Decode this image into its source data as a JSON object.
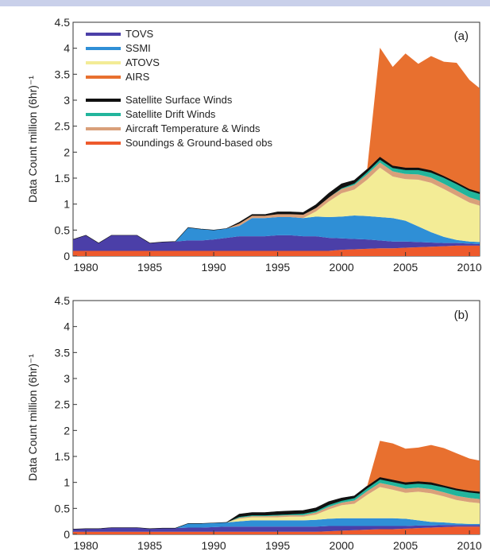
{
  "colors": {
    "background": "#c9d0ea",
    "panel": "#ffffff",
    "TOVS": "#4b3fa8",
    "SSMI": "#2f8fd6",
    "ATOVS": "#f3ec96",
    "AIRS": "#e8702f",
    "Satellite Surface Winds": "#111111",
    "Satellite Drift Winds": "#22b59c",
    "Aircraft Temperature & Winds": "#d9a07a",
    "Soundings & Ground-based obs": "#ee5a2c"
  },
  "chart_data": [
    {
      "type": "area",
      "panel_label": "(a)",
      "ylabel": "Data Count million (6hr)⁻¹",
      "xlabel": "",
      "xlim": [
        1979,
        2010.8
      ],
      "ylim": [
        0,
        4.5
      ],
      "xticks": [
        "1980",
        "1985",
        "1990",
        "1995",
        "2000",
        "2005",
        "2010"
      ],
      "yticks": [
        "0",
        "0.5",
        "1",
        "1.5",
        "2",
        "2.5",
        "3",
        "3.5",
        "4",
        "4.5"
      ],
      "grid": false,
      "legend_position": "top-left",
      "x": [
        1979,
        1980,
        1981,
        1982,
        1983,
        1984,
        1985,
        1986,
        1987,
        1988,
        1989,
        1990,
        1991,
        1992,
        1993,
        1994,
        1995,
        1996,
        1997,
        1998,
        1999,
        2000,
        2001,
        2002,
        2003,
        2004,
        2005,
        2006,
        2007,
        2008,
        2009,
        2010,
        2010.8
      ],
      "series": [
        {
          "name": "Soundings & Ground-based obs",
          "values": [
            0.1,
            0.1,
            0.1,
            0.1,
            0.1,
            0.1,
            0.1,
            0.1,
            0.1,
            0.1,
            0.1,
            0.1,
            0.1,
            0.1,
            0.1,
            0.1,
            0.1,
            0.1,
            0.1,
            0.1,
            0.1,
            0.12,
            0.13,
            0.14,
            0.15,
            0.15,
            0.16,
            0.17,
            0.18,
            0.19,
            0.2,
            0.2,
            0.2
          ]
        },
        {
          "name": "TOVS",
          "values": [
            0.22,
            0.3,
            0.15,
            0.3,
            0.3,
            0.3,
            0.15,
            0.17,
            0.18,
            0.2,
            0.2,
            0.22,
            0.25,
            0.28,
            0.28,
            0.28,
            0.3,
            0.3,
            0.28,
            0.28,
            0.25,
            0.22,
            0.2,
            0.18,
            0.15,
            0.13,
            0.12,
            0.1,
            0.08,
            0.06,
            0.05,
            0.04,
            0.03
          ]
        },
        {
          "name": "SSMI",
          "values": [
            0,
            0,
            0,
            0,
            0,
            0,
            0,
            0,
            0,
            0.25,
            0.22,
            0.18,
            0.18,
            0.2,
            0.35,
            0.35,
            0.35,
            0.35,
            0.35,
            0.38,
            0.4,
            0.42,
            0.45,
            0.45,
            0.45,
            0.45,
            0.4,
            0.3,
            0.2,
            0.12,
            0.06,
            0.04,
            0.04
          ]
        },
        {
          "name": "ATOVS",
          "values": [
            0,
            0,
            0,
            0,
            0,
            0,
            0,
            0,
            0,
            0,
            0,
            0,
            0,
            0,
            0,
            0,
            0,
            0,
            0,
            0.1,
            0.3,
            0.45,
            0.5,
            0.7,
            0.95,
            0.8,
            0.8,
            0.9,
            0.95,
            0.92,
            0.85,
            0.75,
            0.7
          ]
        },
        {
          "name": "Aircraft Temperature & Winds",
          "values": [
            0,
            0,
            0,
            0,
            0,
            0,
            0,
            0,
            0,
            0,
            0,
            0,
            0,
            0.05,
            0.05,
            0.05,
            0.06,
            0.06,
            0.07,
            0.07,
            0.08,
            0.08,
            0.09,
            0.1,
            0.1,
            0.1,
            0.1,
            0.1,
            0.1,
            0.1,
            0.1,
            0.1,
            0.1
          ]
        },
        {
          "name": "Satellite Drift Winds",
          "values": [
            0,
            0,
            0,
            0,
            0,
            0,
            0,
            0,
            0,
            0,
            0,
            0,
            0,
            0,
            0,
            0,
            0,
            0,
            0,
            0,
            0,
            0.02,
            0.03,
            0.05,
            0.06,
            0.07,
            0.08,
            0.09,
            0.1,
            0.12,
            0.13,
            0.13,
            0.13
          ]
        },
        {
          "name": "Satellite Surface Winds",
          "values": [
            0,
            0,
            0,
            0,
            0,
            0,
            0,
            0,
            0,
            0,
            0,
            0,
            0,
            0.02,
            0.02,
            0.02,
            0.04,
            0.04,
            0.04,
            0.06,
            0.08,
            0.08,
            0.06,
            0.05,
            0.05,
            0.04,
            0.04,
            0.04,
            0.04,
            0.03,
            0.03,
            0.03,
            0.03
          ]
        },
        {
          "name": "AIRS",
          "values": [
            0,
            0,
            0,
            0,
            0,
            0,
            0,
            0,
            0,
            0,
            0,
            0,
            0,
            0,
            0,
            0,
            0,
            0,
            0,
            0,
            0,
            0,
            0,
            0,
            2.1,
            1.9,
            2.2,
            2.0,
            2.2,
            2.2,
            2.3,
            2.1,
            2.0
          ]
        }
      ]
    },
    {
      "type": "area",
      "panel_label": "(b)",
      "ylabel": "Data Count million (6hr)⁻¹",
      "xlabel": "",
      "xlim": [
        1979,
        2010.8
      ],
      "ylim": [
        0,
        4.5
      ],
      "xticks": [
        "1980",
        "1985",
        "1990",
        "1995",
        "2000",
        "2005",
        "2010"
      ],
      "yticks": [
        "0",
        "0.5",
        "1",
        "1.5",
        "2",
        "2.5",
        "3",
        "3.5",
        "4",
        "4.5"
      ],
      "grid": false,
      "x": [
        1979,
        1980,
        1981,
        1982,
        1983,
        1984,
        1985,
        1986,
        1987,
        1988,
        1989,
        1990,
        1991,
        1992,
        1993,
        1994,
        1995,
        1996,
        1997,
        1998,
        1999,
        2000,
        2001,
        2002,
        2003,
        2004,
        2005,
        2006,
        2007,
        2008,
        2009,
        2010,
        2010.8
      ],
      "series": [
        {
          "name": "Soundings & Ground-based obs",
          "values": [
            0.05,
            0.05,
            0.05,
            0.05,
            0.05,
            0.05,
            0.05,
            0.05,
            0.05,
            0.05,
            0.05,
            0.05,
            0.05,
            0.05,
            0.05,
            0.05,
            0.05,
            0.05,
            0.05,
            0.05,
            0.06,
            0.07,
            0.08,
            0.09,
            0.1,
            0.1,
            0.11,
            0.12,
            0.13,
            0.14,
            0.15,
            0.15,
            0.15
          ]
        },
        {
          "name": "TOVS",
          "values": [
            0.05,
            0.06,
            0.06,
            0.08,
            0.08,
            0.08,
            0.06,
            0.07,
            0.07,
            0.08,
            0.08,
            0.09,
            0.1,
            0.1,
            0.1,
            0.1,
            0.1,
            0.1,
            0.1,
            0.1,
            0.1,
            0.09,
            0.08,
            0.07,
            0.06,
            0.06,
            0.05,
            0.05,
            0.04,
            0.04,
            0.03,
            0.03,
            0.03
          ]
        },
        {
          "name": "SSMI",
          "values": [
            0,
            0,
            0,
            0,
            0,
            0,
            0,
            0,
            0,
            0.08,
            0.08,
            0.08,
            0.08,
            0.1,
            0.12,
            0.12,
            0.12,
            0.12,
            0.12,
            0.13,
            0.14,
            0.15,
            0.15,
            0.15,
            0.15,
            0.15,
            0.14,
            0.1,
            0.07,
            0.05,
            0.03,
            0.02,
            0.02
          ]
        },
        {
          "name": "ATOVS",
          "values": [
            0,
            0,
            0,
            0,
            0,
            0,
            0,
            0,
            0,
            0,
            0,
            0,
            0,
            0.05,
            0.06,
            0.06,
            0.06,
            0.07,
            0.07,
            0.1,
            0.18,
            0.25,
            0.28,
            0.45,
            0.6,
            0.55,
            0.5,
            0.55,
            0.55,
            0.5,
            0.45,
            0.42,
            0.4
          ]
        },
        {
          "name": "Aircraft Temperature & Winds",
          "values": [
            0,
            0,
            0,
            0,
            0,
            0,
            0,
            0,
            0,
            0,
            0,
            0,
            0,
            0.02,
            0.02,
            0.02,
            0.03,
            0.03,
            0.03,
            0.04,
            0.05,
            0.05,
            0.06,
            0.07,
            0.08,
            0.08,
            0.08,
            0.08,
            0.08,
            0.08,
            0.08,
            0.08,
            0.08
          ]
        },
        {
          "name": "Satellite Drift Winds",
          "values": [
            0,
            0,
            0,
            0,
            0,
            0,
            0,
            0,
            0,
            0,
            0,
            0,
            0,
            0.02,
            0.02,
            0.02,
            0.02,
            0.02,
            0.03,
            0.03,
            0.04,
            0.04,
            0.05,
            0.06,
            0.07,
            0.07,
            0.08,
            0.08,
            0.09,
            0.1,
            0.11,
            0.11,
            0.11
          ]
        },
        {
          "name": "Satellite Surface Winds",
          "values": [
            0,
            0,
            0,
            0,
            0,
            0,
            0,
            0,
            0,
            0,
            0,
            0,
            0,
            0.05,
            0.05,
            0.05,
            0.06,
            0.06,
            0.06,
            0.06,
            0.06,
            0.05,
            0.04,
            0.04,
            0.04,
            0.04,
            0.04,
            0.04,
            0.04,
            0.03,
            0.03,
            0.03,
            0.03
          ]
        },
        {
          "name": "AIRS",
          "values": [
            0,
            0,
            0,
            0,
            0,
            0,
            0,
            0,
            0,
            0,
            0,
            0,
            0,
            0,
            0,
            0,
            0,
            0,
            0,
            0,
            0,
            0,
            0,
            0,
            0.7,
            0.7,
            0.65,
            0.65,
            0.72,
            0.72,
            0.68,
            0.62,
            0.6
          ]
        }
      ]
    }
  ],
  "legend": {
    "items": [
      {
        "label": "TOVS",
        "color": "#4b3fa8"
      },
      {
        "label": "SSMI",
        "color": "#2f8fd6"
      },
      {
        "label": "ATOVS",
        "color": "#f3ec96"
      },
      {
        "label": "AIRS",
        "color": "#e8702f"
      },
      {
        "label": "Satellite Surface Winds",
        "color": "#111111"
      },
      {
        "label": "Satellite Drift Winds",
        "color": "#22b59c"
      },
      {
        "label": "Aircraft Temperature & Winds",
        "color": "#d9a07a"
      },
      {
        "label": "Soundings & Ground-based obs",
        "color": "#ee5a2c"
      }
    ]
  }
}
